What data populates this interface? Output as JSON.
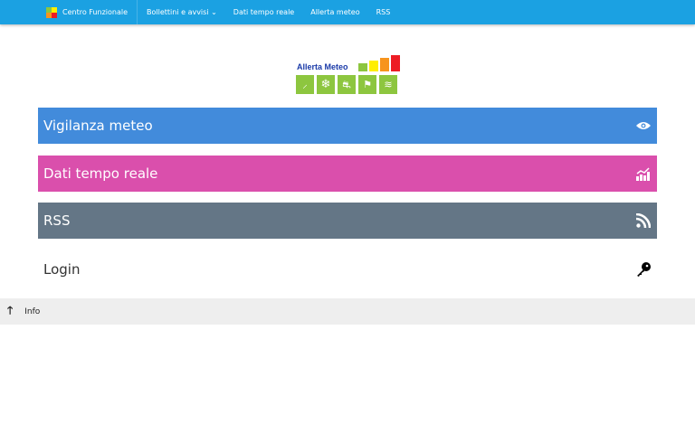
{
  "nav": {
    "brand": "Centro Funzionale",
    "items": [
      "Bollettini e avvisi",
      "Dati tempo reale",
      "Allerta meteo",
      "RSS"
    ]
  },
  "logo": {
    "text": "Allerta Meteo",
    "colors": [
      "#8dc63f",
      "#ffee00",
      "#f7941d",
      "#ed1c24"
    ],
    "icons": [
      "rain-icon",
      "snow-icon",
      "road-ice-icon",
      "wind-icon",
      "waves-icon"
    ]
  },
  "tiles": [
    {
      "label": "Vigilanza meteo",
      "color": "#428bdb",
      "icon": "eye-icon"
    },
    {
      "label": "Dati tempo reale",
      "color": "#da4fac",
      "icon": "chart-icon"
    },
    {
      "label": "RSS",
      "color": "#647686",
      "icon": "rss-icon"
    },
    {
      "label": "Login",
      "color": "#ffffff",
      "icon": "key-icon"
    }
  ],
  "footer": {
    "link": "Info"
  }
}
